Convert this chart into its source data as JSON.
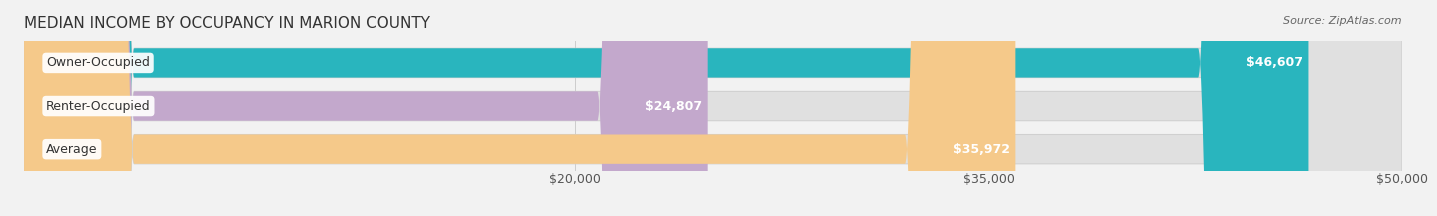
{
  "title": "MEDIAN INCOME BY OCCUPANCY IN MARION COUNTY",
  "source": "Source: ZipAtlas.com",
  "categories": [
    "Owner-Occupied",
    "Renter-Occupied",
    "Average"
  ],
  "values": [
    46607,
    24807,
    35972
  ],
  "bar_colors": [
    "#29b5be",
    "#c3a8cc",
    "#f5c98a"
  ],
  "value_labels": [
    "$46,607",
    "$24,807",
    "$35,972"
  ],
  "xlim": [
    0,
    50000
  ],
  "xticks": [
    20000,
    35000,
    50000
  ],
  "xticklabels": [
    "$20,000",
    "$35,000",
    "$50,000"
  ],
  "background_color": "#f2f2f2",
  "bar_bg_color": "#e0e0e0",
  "title_fontsize": 11,
  "source_fontsize": 8,
  "label_fontsize": 9,
  "value_fontsize": 9,
  "tick_fontsize": 9
}
